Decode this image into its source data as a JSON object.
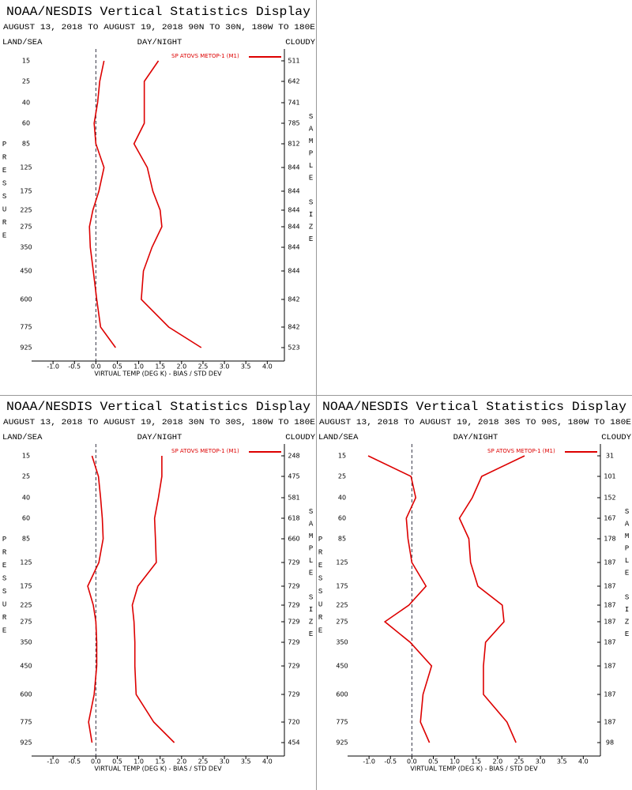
{
  "chart_data": [
    {
      "type": "line",
      "title": "NOAA/NESDIS Vertical Statistics Display",
      "subtitle": "AUGUST 13, 2018 TO AUGUST 19, 2018  90N TO 30N, 180W TO 180E",
      "left_label": "LAND/SEA",
      "center_label": "DAY/NIGHT",
      "right_label": "CLOUDY",
      "ylabel": "PRESSURE",
      "y2label": "SAMPLE SIZE",
      "xlabel": "VIRTUAL TEMP (DEG K) - BIAS / STD DEV",
      "categories": [
        15,
        25,
        40,
        60,
        85,
        125,
        175,
        225,
        275,
        350,
        450,
        600,
        775,
        925
      ],
      "sample_sizes": [
        511,
        642,
        741,
        785,
        812,
        844,
        844,
        844,
        844,
        844,
        844,
        842,
        842,
        523
      ],
      "series": [
        {
          "name": "SP ATOVS METOP-1 (M1)",
          "color": "#dd0000",
          "values": [
            0.19,
            0.09,
            0.04,
            -0.04,
            0,
            0.19,
            0.07,
            -0.07,
            -0.15,
            -0.13,
            -0.06,
            0.02,
            0.11,
            0.46
          ]
        },
        {
          "color": "#dd0000",
          "values": [
            1.46,
            1.13,
            1.13,
            1.13,
            0.89,
            1.2,
            1.33,
            1.5,
            1.54,
            1.31,
            1.11,
            1.06,
            1.7,
            2.46
          ]
        }
      ],
      "xlim": [
        -1.5,
        4.4
      ],
      "xticks": [
        {
          "value": -1,
          "label": "-1.0"
        },
        -0.5,
        {
          "value": 0,
          "label": "0.0"
        },
        0.5,
        {
          "value": 1,
          "label": "1.0"
        },
        1.5,
        {
          "value": 2,
          "label": "2.0"
        },
        2.5,
        {
          "value": 3,
          "label": "3.0"
        },
        3.5,
        {
          "value": 4,
          "label": "4.0"
        }
      ],
      "zero_line": 0
    },
    {
      "type": "line",
      "title": "NOAA/NESDIS Vertical Statistics Display",
      "subtitle": "AUGUST 13, 2018 TO AUGUST 19, 2018  30N TO 30S, 180W TO 180E",
      "left_label": "LAND/SEA",
      "center_label": "DAY/NIGHT",
      "right_label": "CLOUDY",
      "ylabel": "PRESSURE",
      "y2label": "SAMPLE SIZE",
      "xlabel": "VIRTUAL TEMP (DEG K) - BIAS / STD DEV",
      "categories": [
        15,
        25,
        40,
        60,
        85,
        125,
        175,
        225,
        275,
        350,
        450,
        600,
        775,
        925
      ],
      "sample_sizes": [
        248,
        475,
        581,
        618,
        660,
        729,
        729,
        729,
        729,
        729,
        729,
        729,
        720,
        454
      ],
      "series": [
        {
          "name": "SP ATOVS METOP-1 (M1)",
          "color": "#dd0000",
          "values": [
            -0.09,
            0.06,
            0.11,
            0.15,
            0.17,
            0.07,
            -0.19,
            -0.06,
            0,
            0.02,
            0.02,
            -0.04,
            -0.17,
            -0.09
          ]
        },
        {
          "color": "#dd0000",
          "values": [
            1.54,
            1.54,
            1.46,
            1.37,
            1.39,
            1.41,
            0.98,
            0.85,
            0.89,
            0.91,
            0.91,
            0.94,
            1.35,
            1.83
          ]
        }
      ],
      "xlim": [
        -1.5,
        4.4
      ],
      "xticks": [
        {
          "value": -1,
          "label": "-1.0"
        },
        -0.5,
        {
          "value": 0,
          "label": "0.0"
        },
        0.5,
        {
          "value": 1,
          "label": "1.0"
        },
        1.5,
        {
          "value": 2,
          "label": "2.0"
        },
        2.5,
        {
          "value": 3,
          "label": "3.0"
        },
        3.5,
        {
          "value": 4,
          "label": "4.0"
        }
      ],
      "zero_line": 0
    },
    {
      "type": "line",
      "title": "NOAA/NESDIS Vertical Statistics Display",
      "subtitle": "AUGUST 13, 2018 TO AUGUST 19, 2018  30S TO 90S, 180W TO 180E",
      "left_label": "LAND/SEA",
      "center_label": "DAY/NIGHT",
      "right_label": "CLOUDY",
      "ylabel": "PRESSURE",
      "y2label": "SAMPLE SIZE",
      "xlabel": "VIRTUAL TEMP (DEG K) - BIAS / STD DEV",
      "categories": [
        15,
        25,
        40,
        60,
        85,
        125,
        175,
        225,
        275,
        350,
        450,
        600,
        775,
        925
      ],
      "sample_sizes": [
        31,
        101,
        152,
        167,
        178,
        187,
        187,
        187,
        187,
        187,
        187,
        187,
        187,
        98
      ],
      "series": [
        {
          "name": "SP ATOVS METOP-1 (M1)",
          "color": "#dd0000",
          "values": [
            -1.02,
            -0.02,
            0.09,
            -0.13,
            -0.09,
            0,
            0.33,
            -0.07,
            -0.63,
            -0.04,
            0.46,
            0.26,
            0.2,
            0.41
          ]
        },
        {
          "color": "#dd0000",
          "values": [
            2.63,
            1.63,
            1.41,
            1.11,
            1.33,
            1.37,
            1.54,
            2.11,
            2.15,
            1.72,
            1.67,
            1.67,
            2.22,
            2.43
          ]
        }
      ],
      "xlim": [
        -1.5,
        4.4
      ],
      "xticks": [
        {
          "value": -1,
          "label": "-1.0"
        },
        -0.5,
        {
          "value": 0,
          "label": "0.0"
        },
        0.5,
        {
          "value": 1,
          "label": "1.0"
        },
        1.5,
        {
          "value": 2,
          "label": "2.0"
        },
        2.5,
        {
          "value": 3,
          "label": "3.0"
        },
        3.5,
        {
          "value": 4,
          "label": "4.0"
        }
      ],
      "zero_line": 0
    }
  ]
}
